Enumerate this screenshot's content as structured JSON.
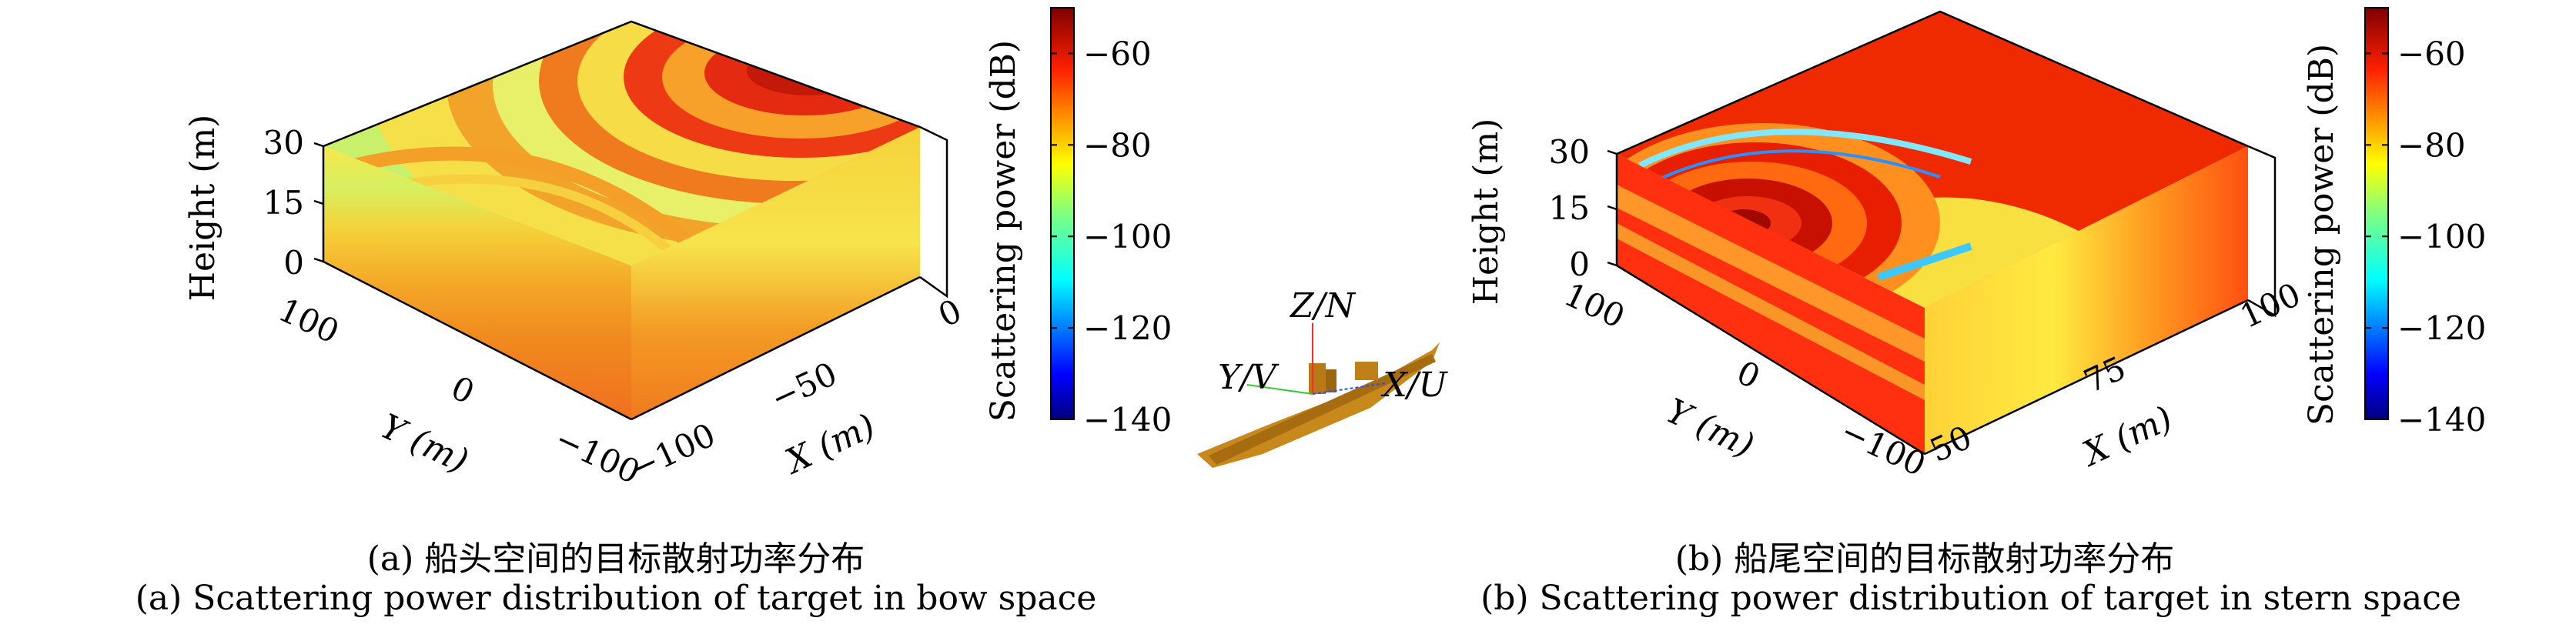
{
  "chart_data": [
    {
      "type": "heatmap",
      "caption_zh": "(a) 船头空间的目标散射功率分布",
      "caption_en": "(a) Scattering power distribution of target in bow space",
      "xlabel": "X (m)",
      "ylabel": "Y (m)",
      "zlabel": "Height (m)",
      "x_ticks": [
        "−100",
        "−50",
        "0"
      ],
      "y_ticks": [
        "100",
        "0",
        "−100"
      ],
      "z_ticks": [
        "30",
        "15",
        "0"
      ],
      "xlim": [
        -100,
        0
      ],
      "ylim": [
        -100,
        100
      ],
      "zlim": [
        0,
        30
      ],
      "colorbar": {
        "label": "Scattering power (dB)",
        "ticks": [
          "−60",
          "−80",
          "−100",
          "−120",
          "−140"
        ],
        "range": [
          -140,
          -50
        ],
        "colormap": "jet"
      }
    },
    {
      "type": "heatmap",
      "caption_zh": "(b) 船尾空间的目标散射功率分布",
      "caption_en": "(b) Scattering power distribution of target in stern space",
      "xlabel": "X (m)",
      "ylabel": "Y (m)",
      "zlabel": "Height (m)",
      "x_ticks": [
        "50",
        "75",
        "100"
      ],
      "y_ticks": [
        "100",
        "0",
        "−100"
      ],
      "z_ticks": [
        "30",
        "15",
        "0"
      ],
      "xlim": [
        50,
        100
      ],
      "ylim": [
        -100,
        100
      ],
      "zlim": [
        0,
        30
      ],
      "colorbar": {
        "label": "Scattering power (dB)",
        "ticks": [
          "−60",
          "−80",
          "−100",
          "−120",
          "−140"
        ],
        "range": [
          -140,
          -50
        ],
        "colormap": "jet"
      }
    }
  ],
  "ship_model": {
    "axis_z": "Z/N",
    "axis_y": "Y/V",
    "axis_x": "X/U",
    "hull_color": "#c8891c"
  }
}
